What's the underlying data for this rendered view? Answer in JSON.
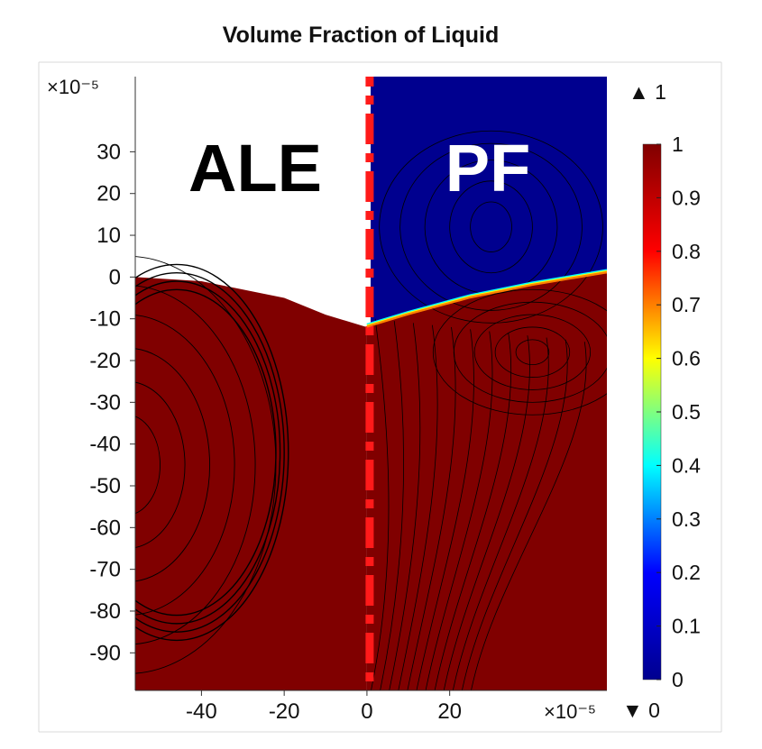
{
  "chart_data": {
    "type": "heatmap",
    "title": "Volume Fraction of Liquid",
    "panel_labels": {
      "left": "ALE",
      "right": "PF"
    },
    "x_axis": {
      "ticks": [
        -40,
        -20,
        0,
        20
      ],
      "tick_labels": [
        "-40",
        "-20",
        "0",
        "20"
      ],
      "range": [
        -56,
        58
      ],
      "scale_label": "×10⁻⁵"
    },
    "y_axis": {
      "ticks": [
        30,
        20,
        10,
        0,
        -10,
        -20,
        -30,
        -40,
        -50,
        -60,
        -70,
        -80,
        -90
      ],
      "tick_labels": [
        "30",
        "20",
        "10",
        "0",
        "-10",
        "-20",
        "-30",
        "-40",
        "-50",
        "-60",
        "-70",
        "-80",
        "-90"
      ],
      "range": [
        -99,
        48
      ],
      "scale_label": "×10⁻⁵"
    },
    "colorbar": {
      "range": [
        0,
        1
      ],
      "ticks": [
        0,
        0.1,
        0.2,
        0.3,
        0.4,
        0.5,
        0.6,
        0.7,
        0.8,
        0.9,
        1
      ],
      "tick_labels": [
        "0",
        "0.1",
        "0.2",
        "0.3",
        "0.4",
        "0.5",
        "0.6",
        "0.7",
        "0.8",
        "0.9",
        "1"
      ],
      "max_marker": "▲ 1",
      "min_marker": "▼ 0",
      "colors": [
        "#00008f",
        "#0000ff",
        "#00ffff",
        "#ffff00",
        "#ff0000",
        "#800000"
      ]
    },
    "regions": {
      "liquid_value": 1,
      "gas_value": 0,
      "interface_left": [
        [
          -56,
          0
        ],
        [
          -40,
          -1
        ],
        [
          -20,
          -5
        ],
        [
          -10,
          -9
        ],
        [
          0,
          -12
        ]
      ],
      "interface_right": [
        [
          0,
          -12
        ],
        [
          10,
          -9
        ],
        [
          25,
          -5
        ],
        [
          40,
          -2
        ],
        [
          58,
          1
        ]
      ],
      "dividing_line_x": 0
    },
    "colors": {
      "liquid": "#800000",
      "gas": "#00008f",
      "divider": "#ff1a1a",
      "streamline": "#000000"
    }
  }
}
